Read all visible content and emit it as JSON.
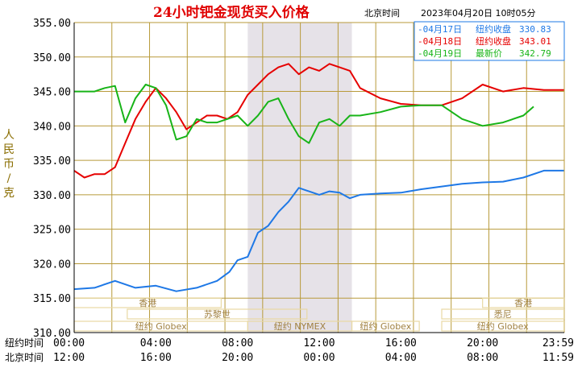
{
  "header": {
    "title": "24小时钯金现货买入价格",
    "location": "北京时间",
    "datetime": "2023年04月20日 10时05分"
  },
  "legend": [
    {
      "date": "-04月17日",
      "label": "纽约收盘",
      "value": "330.83",
      "color": "#1e78e6"
    },
    {
      "date": "-04月18日",
      "label": "纽约收盘",
      "value": "343.01",
      "color": "#e60000"
    },
    {
      "date": "-04月19日",
      "label": "最新价",
      "value": "342.79",
      "color": "#18b418"
    }
  ],
  "yaxis_label_chars": [
    "人",
    "民",
    "币",
    "/",
    "克"
  ],
  "x_rows": [
    {
      "label": "纽约时间",
      "ticks": [
        "00:00",
        "04:00",
        "08:00",
        "12:00",
        "16:00",
        "20:00",
        "23:59"
      ]
    },
    {
      "label": "北京时间",
      "ticks": [
        "12:00",
        "16:00",
        "20:00",
        "00:00",
        "04:00",
        "08:00",
        "11:59"
      ]
    }
  ],
  "sessions": [
    {
      "label": "香港",
      "start": 0,
      "end": 7.2,
      "row": 0
    },
    {
      "label": "苏黎世",
      "start": 2.6,
      "end": 11.4,
      "row": 1
    },
    {
      "label": "纽约 Globex",
      "start": 0,
      "end": 8.5,
      "row": 2
    },
    {
      "label": "纽约 NYMEX",
      "start": 8.5,
      "end": 13.6,
      "row": 2
    },
    {
      "label": "纽约 Globex",
      "start": 13.6,
      "end": 16.9,
      "row": 2
    },
    {
      "label": "香港",
      "start": 20.0,
      "end": 23.98,
      "row": 0
    },
    {
      "label": "悉尼",
      "start": 18.0,
      "end": 23.98,
      "row": 1
    },
    {
      "label": "纽约 Globex",
      "start": 18.0,
      "end": 23.98,
      "row": 2
    }
  ],
  "colors": {
    "grid": "#b89a3a",
    "nymex_shade": "#e6e2e8",
    "session_box": "#e8d9a4",
    "axis": "#000000"
  },
  "chart_data": {
    "type": "line",
    "xlabel": "",
    "ylabel": "人民币/克",
    "xlim": [
      0,
      24
    ],
    "ylim": [
      310,
      355
    ],
    "yticks": [
      310,
      315,
      320,
      325,
      330,
      335,
      340,
      345,
      350,
      355
    ],
    "grid": true,
    "legend_position": "top-right",
    "series": [
      {
        "name": "04月17日",
        "color": "#1e78e6",
        "x": [
          0,
          1,
          2,
          3,
          4,
          5,
          6,
          7,
          7.6,
          8,
          8.5,
          9,
          9.5,
          10,
          10.5,
          11,
          11.5,
          12,
          12.5,
          13,
          13.5,
          14,
          15,
          16,
          17,
          18,
          19,
          20,
          21,
          22,
          23,
          23.98
        ],
        "y": [
          316.3,
          316.5,
          317.5,
          316.5,
          316.8,
          316.0,
          316.5,
          317.5,
          318.8,
          320.5,
          321.0,
          324.5,
          325.5,
          327.5,
          329.0,
          331.0,
          330.5,
          330.0,
          330.5,
          330.3,
          329.5,
          330.0,
          330.2,
          330.3,
          330.8,
          331.2,
          331.6,
          331.8,
          331.9,
          332.5,
          333.5,
          333.5
        ]
      },
      {
        "name": "04月18日",
        "color": "#e60000",
        "x": [
          0,
          0.5,
          1,
          1.5,
          2,
          2.5,
          3,
          3.5,
          4,
          4.5,
          5,
          5.5,
          6,
          6.5,
          7,
          7.5,
          8,
          8.5,
          9,
          9.5,
          10,
          10.5,
          11,
          11.5,
          12,
          12.5,
          13,
          13.5,
          14,
          15,
          16,
          17,
          18,
          19,
          20,
          21,
          22,
          23,
          23.98
        ],
        "y": [
          333.5,
          332.5,
          333.0,
          333.0,
          334.0,
          337.5,
          341.0,
          343.5,
          345.5,
          344.0,
          342.0,
          339.5,
          340.5,
          341.5,
          341.5,
          341.0,
          342.0,
          344.5,
          346.0,
          347.5,
          348.5,
          349.0,
          347.5,
          348.5,
          348.0,
          349.0,
          348.5,
          348.0,
          345.5,
          344.0,
          343.2,
          343.0,
          343.0,
          344.0,
          346.0,
          345.0,
          345.5,
          345.2,
          345.2
        ]
      },
      {
        "name": "04月19日",
        "color": "#18b418",
        "x": [
          0,
          1,
          1.5,
          2,
          2.5,
          3,
          3.5,
          4,
          4.5,
          5,
          5.5,
          6,
          6.5,
          7,
          7.5,
          8,
          8.5,
          9,
          9.5,
          10,
          10.5,
          11,
          11.5,
          12,
          12.5,
          13,
          13.5,
          14,
          15,
          16,
          17,
          18,
          19,
          20,
          21,
          22,
          22.5
        ],
        "y": [
          345.0,
          345.0,
          345.5,
          345.8,
          340.5,
          344.0,
          346.0,
          345.5,
          343.0,
          338.0,
          338.5,
          341.0,
          340.5,
          340.5,
          341.0,
          341.5,
          340.0,
          341.5,
          343.5,
          344.0,
          341.0,
          338.5,
          337.5,
          340.5,
          341.0,
          340.0,
          341.5,
          341.5,
          342.0,
          342.8,
          343.0,
          343.0,
          341.0,
          340.0,
          340.5,
          341.5,
          342.8
        ]
      }
    ]
  }
}
